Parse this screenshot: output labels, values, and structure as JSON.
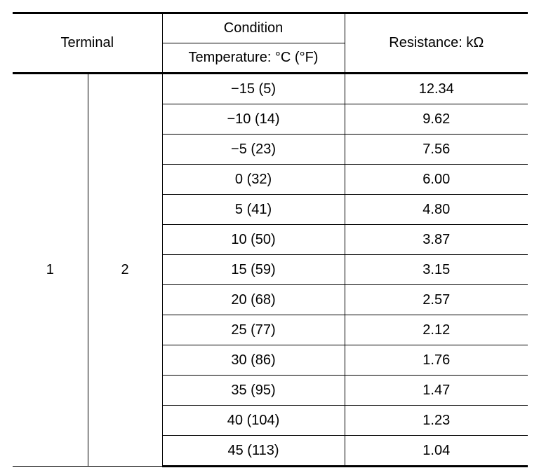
{
  "table": {
    "headers": {
      "terminal": "Terminal",
      "condition": "Condition",
      "temperature": "Temperature: °C (°F)",
      "resistance": "Resistance: kΩ"
    },
    "terminals": {
      "a": "1",
      "b": "2"
    },
    "rows": [
      {
        "temperature": "−15 (5)",
        "resistance": "12.34"
      },
      {
        "temperature": "−10 (14)",
        "resistance": "9.62"
      },
      {
        "temperature": "−5 (23)",
        "resistance": "7.56"
      },
      {
        "temperature": "0 (32)",
        "resistance": "6.00"
      },
      {
        "temperature": "5 (41)",
        "resistance": "4.80"
      },
      {
        "temperature": "10 (50)",
        "resistance": "3.87"
      },
      {
        "temperature": "15 (59)",
        "resistance": "3.15"
      },
      {
        "temperature": "20 (68)",
        "resistance": "2.57"
      },
      {
        "temperature": "25 (77)",
        "resistance": "2.12"
      },
      {
        "temperature": "30 (86)",
        "resistance": "1.76"
      },
      {
        "temperature": "35 (95)",
        "resistance": "1.47"
      },
      {
        "temperature": "40 (104)",
        "resistance": "1.23"
      },
      {
        "temperature": "45 (113)",
        "resistance": "1.04"
      }
    ]
  }
}
